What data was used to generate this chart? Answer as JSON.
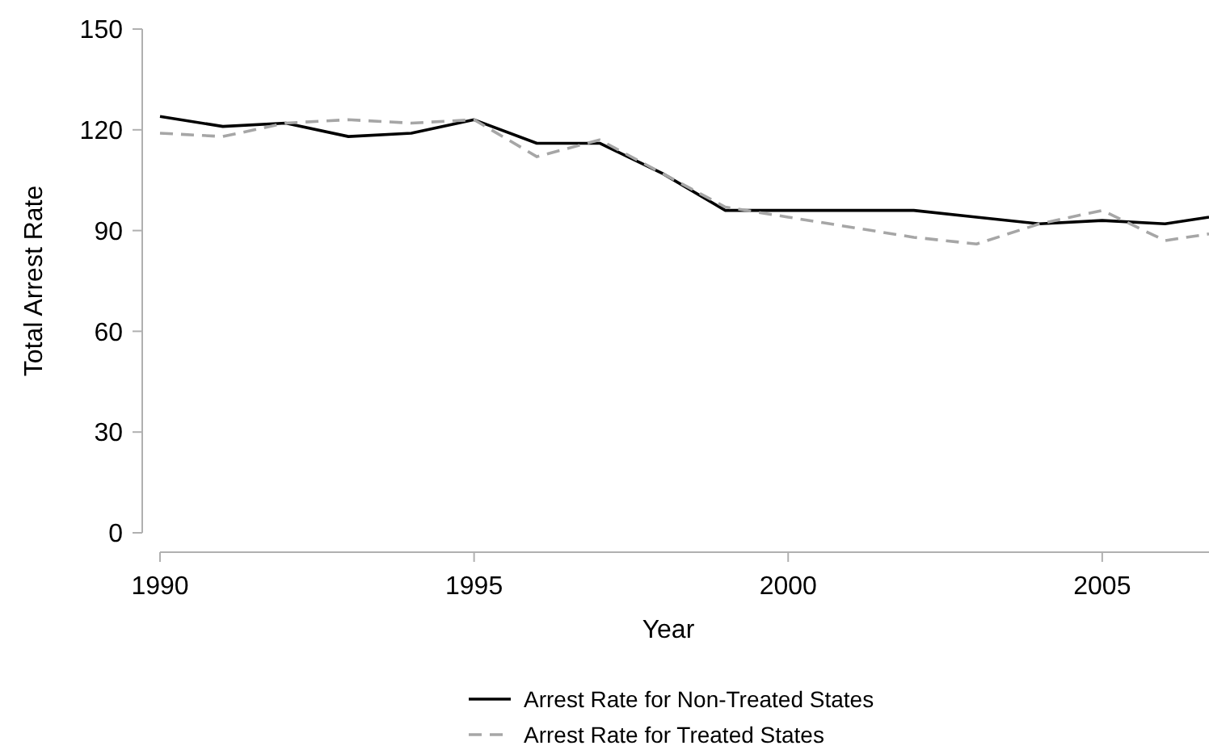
{
  "chart_data": {
    "type": "line",
    "xlabel": "Year",
    "ylabel": "Total Arrest Rate",
    "x": [
      1990,
      1991,
      1992,
      1993,
      1994,
      1995,
      1996,
      1997,
      1998,
      1999,
      2000,
      2001,
      2002,
      2003,
      2004,
      2005,
      2006,
      2006.7
    ],
    "xlim": [
      1990,
      2006.7
    ],
    "xticks": [
      1990,
      1995,
      2000,
      2005
    ],
    "ylim": [
      0,
      150
    ],
    "yticks": [
      0,
      30,
      60,
      90,
      120,
      150
    ],
    "grid": false,
    "legend": "bottom",
    "marker": "none",
    "series": [
      {
        "name": "Arrest Rate for Non-Treated States",
        "color": "#000000",
        "line_style": "solid",
        "values": [
          124,
          121,
          122,
          118,
          119,
          123,
          116,
          116,
          107,
          96,
          96,
          96,
          96,
          94,
          92,
          93,
          92,
          94
        ]
      },
      {
        "name": "Arrest Rate for Treated States",
        "color": "#a6a6a6",
        "line_style": "dashed",
        "values": [
          119,
          118,
          122,
          123,
          122,
          123,
          112,
          117,
          107,
          97,
          94,
          91,
          88,
          86,
          92,
          96,
          87,
          89
        ]
      }
    ]
  }
}
